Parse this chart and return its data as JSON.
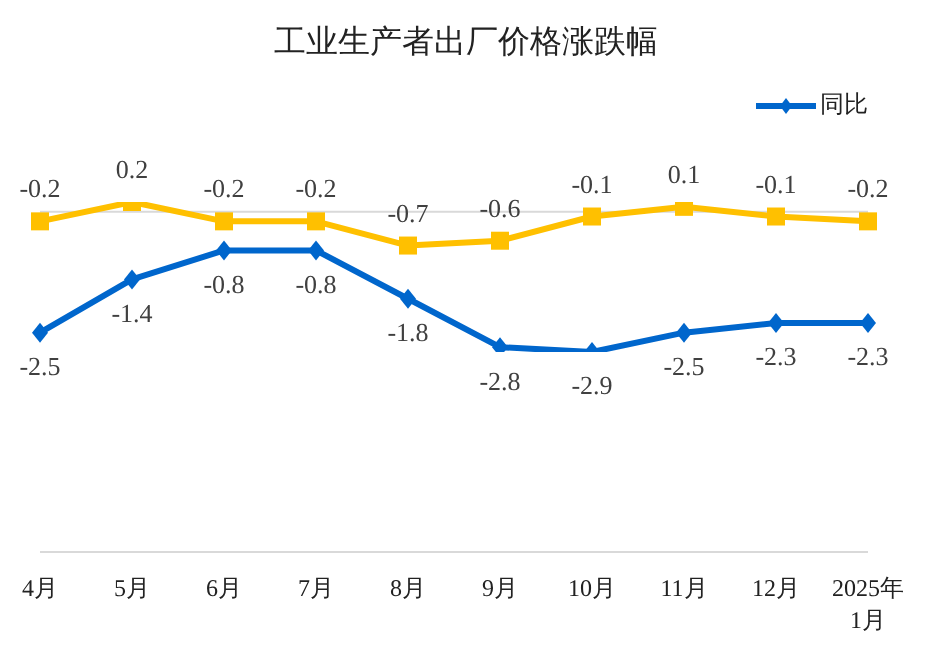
{
  "chart_data": {
    "type": "line",
    "title": "工业生产者出厂价格涨跌幅",
    "categories": [
      "4月",
      "5月",
      "6月",
      "7月",
      "8月",
      "9月",
      "10月",
      "11月",
      "12月",
      "2025年\n1月"
    ],
    "series": [
      {
        "name": "同比",
        "color": "#0066cc",
        "marker": "diamond",
        "values": [
          -2.5,
          -1.4,
          -0.8,
          -0.8,
          -1.8,
          -2.8,
          -2.9,
          -2.5,
          -2.3,
          -2.3
        ]
      },
      {
        "color": "#ffc000",
        "marker": "square",
        "values": [
          -0.2,
          0.2,
          -0.2,
          -0.2,
          -0.7,
          -0.6,
          -0.1,
          0.1,
          -0.1,
          -0.2
        ]
      }
    ],
    "ref_lines": [
      {
        "axis": "y",
        "value": 0,
        "color": "#d9d9d9"
      }
    ],
    "data_labels": true,
    "legend": "top right"
  }
}
